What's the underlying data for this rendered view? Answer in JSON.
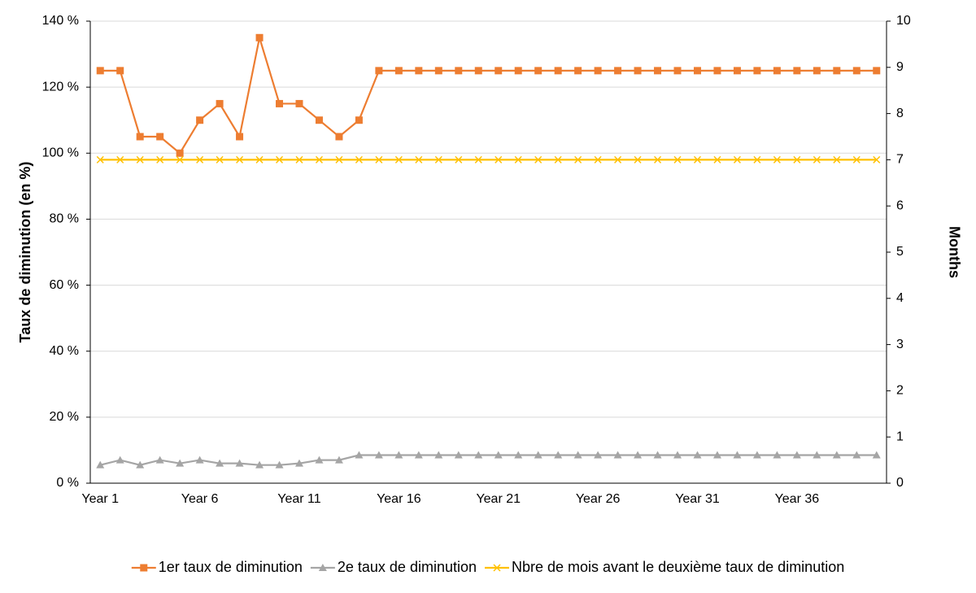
{
  "chart_data": {
    "type": "line",
    "y_label": "Taux de diminution (en %)",
    "y2_label": "Months",
    "categories": [
      "Year 1",
      null,
      null,
      null,
      null,
      "Year 6",
      null,
      null,
      null,
      null,
      "Year 11",
      null,
      null,
      null,
      null,
      "Year 16",
      null,
      null,
      null,
      null,
      "Year 21",
      null,
      null,
      null,
      null,
      "Year 26",
      null,
      null,
      null,
      null,
      "Year 31",
      null,
      null,
      null,
      null,
      "Year 36",
      null,
      null,
      null,
      null
    ],
    "series": [
      {
        "name": "1er taux de diminution",
        "color": "#ED7D31",
        "marker": "square",
        "values": [
          125,
          125,
          105,
          105,
          100,
          110,
          115,
          105,
          135,
          115,
          115,
          110,
          105,
          110,
          125,
          125,
          125,
          125,
          125,
          125,
          125,
          125,
          125,
          125,
          125,
          125,
          125,
          125,
          125,
          125,
          125,
          125,
          125,
          125,
          125,
          125,
          125,
          125,
          125,
          125
        ]
      },
      {
        "name": "2e taux de diminution",
        "color": "#A5A5A5",
        "marker": "triangle",
        "values": [
          5.5,
          7,
          5.5,
          7,
          6,
          7,
          6,
          6,
          5.5,
          5.5,
          6,
          7,
          7,
          8.5,
          8.5,
          8.5,
          8.5,
          8.5,
          8.5,
          8.5,
          8.5,
          8.5,
          8.5,
          8.5,
          8.5,
          8.5,
          8.5,
          8.5,
          8.5,
          8.5,
          8.5,
          8.5,
          8.5,
          8.5,
          8.5,
          8.5,
          8.5,
          8.5,
          8.5,
          8.5
        ]
      },
      {
        "name": "Nbre de mois avant le deuxième taux de diminution",
        "color": "#FFC000",
        "marker": "x",
        "axis": "y2",
        "values": [
          7,
          7,
          7,
          7,
          7,
          7,
          7,
          7,
          7,
          7,
          7,
          7,
          7,
          7,
          7,
          7,
          7,
          7,
          7,
          7,
          7,
          7,
          7,
          7,
          7,
          7,
          7,
          7,
          7,
          7,
          7,
          7,
          7,
          7,
          7,
          7,
          7,
          7,
          7,
          7
        ]
      }
    ],
    "ylim": [
      0,
      140
    ],
    "yticks": [
      {
        "value": 0,
        "label": "0 %"
      },
      {
        "value": 20,
        "label": "20 %"
      },
      {
        "value": 40,
        "label": "40 %"
      },
      {
        "value": 60,
        "label": "60 %"
      },
      {
        "value": 80,
        "label": "80 %"
      },
      {
        "value": 100,
        "label": "100 %"
      },
      {
        "value": 120,
        "label": "120 %"
      },
      {
        "value": 140,
        "label": "140 %"
      }
    ],
    "y2lim": [
      0,
      10
    ],
    "y2ticks": [
      0,
      1,
      2,
      3,
      4,
      5,
      6,
      7,
      8,
      9,
      10
    ],
    "grid": true,
    "legend": "bottom"
  }
}
